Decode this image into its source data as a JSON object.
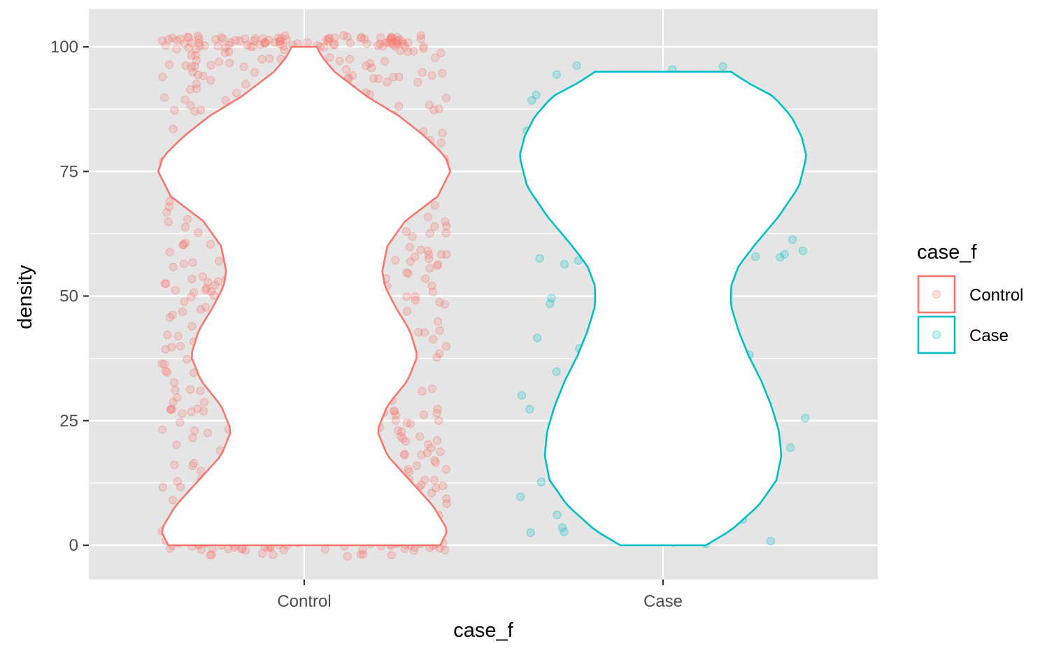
{
  "chart_data": {
    "type": "violin",
    "xlabel": "case_f",
    "ylabel": "density",
    "categories": [
      "Control",
      "Case"
    ],
    "y_ticks": [
      "0",
      "25",
      "50",
      "75",
      "100"
    ],
    "ylim": [
      -7,
      107
    ],
    "grid": true,
    "legend": {
      "title": "case_f",
      "position": "right",
      "entries": [
        "Control",
        "Case"
      ]
    },
    "colors": {
      "Control": "#f8766d",
      "Case": "#00bfc4",
      "panel": "#e5e5e5",
      "grid": "#ffffff"
    },
    "series": [
      {
        "name": "Control",
        "y_range": [
          0,
          100
        ],
        "violin_profile": [
          [
            0,
            0.54
          ],
          [
            3,
            0.57
          ],
          [
            8,
            0.51
          ],
          [
            13,
            0.42
          ],
          [
            18,
            0.33
          ],
          [
            23,
            0.29
          ],
          [
            28,
            0.33
          ],
          [
            33,
            0.41
          ],
          [
            38,
            0.45
          ],
          [
            43,
            0.42
          ],
          [
            48,
            0.36
          ],
          [
            52,
            0.32
          ],
          [
            55,
            0.31
          ],
          [
            60,
            0.33
          ],
          [
            65,
            0.4
          ],
          [
            70,
            0.53
          ],
          [
            75,
            0.58
          ],
          [
            78,
            0.56
          ],
          [
            82,
            0.48
          ],
          [
            86,
            0.38
          ],
          [
            90,
            0.25
          ],
          [
            95,
            0.12
          ],
          [
            98,
            0.07
          ],
          [
            100,
            0.05
          ]
        ],
        "points_approx": 900
      },
      {
        "name": "Case",
        "y_range": [
          0,
          95
        ],
        "violin_profile": [
          [
            0,
            0.17
          ],
          [
            3,
            0.27
          ],
          [
            8,
            0.38
          ],
          [
            13,
            0.45
          ],
          [
            18,
            0.47
          ],
          [
            23,
            0.46
          ],
          [
            28,
            0.43
          ],
          [
            33,
            0.39
          ],
          [
            38,
            0.34
          ],
          [
            43,
            0.3
          ],
          [
            48,
            0.27
          ],
          [
            52,
            0.27
          ],
          [
            56,
            0.3
          ],
          [
            60,
            0.36
          ],
          [
            66,
            0.46
          ],
          [
            72,
            0.54
          ],
          [
            78,
            0.57
          ],
          [
            82,
            0.55
          ],
          [
            86,
            0.51
          ],
          [
            90,
            0.44
          ],
          [
            93,
            0.33
          ],
          [
            95,
            0.27
          ]
        ],
        "points_approx": 110
      }
    ]
  }
}
